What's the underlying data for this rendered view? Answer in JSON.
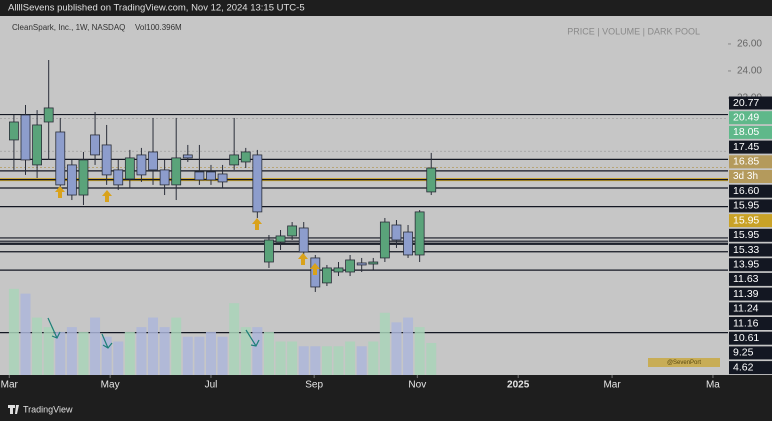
{
  "chart_data": {
    "type": "candlestick",
    "header": "AllllSevens published on TradingView.com, Nov 12, 2024 13:15 UTC-5",
    "legend": "CleanSpark, Inc., 1W, NASDAQ",
    "volume_legend": "Vol100.396M",
    "panel_title": "PRICE | VOLUME | DARK POOL",
    "watermark": "@SevenPort",
    "footer": "TradingView",
    "colors": {
      "up": "#5aa37a",
      "down": "#8d9dcc",
      "up_volume": "#a9d4b9",
      "down_volume": "#adb6d9"
    },
    "candles": {
      "open": [
        18.89,
        20.74,
        17.04,
        20.22,
        19.48,
        17.04,
        14.81,
        19.26,
        18.52,
        16.67,
        16.0,
        17.78,
        18.0,
        16.67,
        15.56,
        17.78,
        16.52,
        16.52,
        16.37,
        17.04,
        17.26,
        17.78,
        9.85,
        11.33,
        11.78,
        12.37,
        10.15,
        8.3,
        9.11,
        9.11,
        9.78,
        9.7,
        10.15,
        12.59,
        12.07,
        10.37,
        15.04
      ],
      "high": [
        20.74,
        21.48,
        21.1,
        24.81,
        20.52,
        17.41,
        18.0,
        20.96,
        20.0,
        17.41,
        18.15,
        18.3,
        20.52,
        17.41,
        20.52,
        18.52,
        18.52,
        17.04,
        17.04,
        20.52,
        18.3,
        18.15,
        11.85,
        12.22,
        12.81,
        12.81,
        10.37,
        9.63,
        9.85,
        10.37,
        10.15,
        10.15,
        13.11,
        12.96,
        12.59,
        13.7,
        17.93
      ],
      "low": [
        16.67,
        16.3,
        16.07,
        17.41,
        14.81,
        14.44,
        14.07,
        17.04,
        15.56,
        15.19,
        15.33,
        15.78,
        15.56,
        14.81,
        14.44,
        17.26,
        15.56,
        15.56,
        15.33,
        16.67,
        16.81,
        13.11,
        9.41,
        10.74,
        11.48,
        10.15,
        7.63,
        8.07,
        8.81,
        8.81,
        9.11,
        9.26,
        9.85,
        10.89,
        10.15,
        9.85,
        14.81
      ],
      "close": [
        20.22,
        17.41,
        20.0,
        21.26,
        15.56,
        14.81,
        17.41,
        17.78,
        16.3,
        15.56,
        17.56,
        16.3,
        16.67,
        15.56,
        17.56,
        17.56,
        15.93,
        15.93,
        15.78,
        17.78,
        18.0,
        13.56,
        11.48,
        11.78,
        12.52,
        10.59,
        8.0,
        9.41,
        9.41,
        10.0,
        9.63,
        9.85,
        12.81,
        11.48,
        10.37,
        13.56,
        16.81
      ]
    },
    "volume": [
      270,
      255,
      180,
      150,
      135,
      150,
      135,
      180,
      120,
      105,
      135,
      150,
      180,
      150,
      180,
      120,
      120,
      135,
      120,
      225,
      150,
      150,
      135,
      105,
      105,
      90,
      90,
      90,
      90,
      105,
      90,
      105,
      195,
      165,
      180,
      150,
      100.396
    ],
    "volume_ylim": [
      0,
      1125
    ],
    "xlim": [
      -1.2,
      61.6
    ],
    "xticks": [
      {
        "value": -0.4,
        "label": "Mar"
      },
      {
        "value": 8.3,
        "label": "May"
      },
      {
        "value": 17.0,
        "label": "Jul"
      },
      {
        "value": 25.9,
        "label": "Sep"
      },
      {
        "value": 34.8,
        "label": "Nov"
      },
      {
        "value": 43.5,
        "label": "2025"
      },
      {
        "value": 51.6,
        "label": "Mar"
      },
      {
        "value": 60.3,
        "label": "Ma"
      }
    ],
    "ylim": [
      1.48,
      28.07
    ],
    "yticks": [
      {
        "value": 26,
        "label": "26.00"
      },
      {
        "value": 24,
        "label": "24.00"
      },
      {
        "value": 22,
        "label": "22.00"
      }
    ],
    "levels": [
      {
        "value": 20.77,
        "color": "#131722"
      },
      {
        "value": 20.49,
        "color": "#5fb88a"
      },
      {
        "value": 18.05,
        "color": "#5fb88a"
      },
      {
        "value": 17.45,
        "color": "#131722"
      },
      {
        "value": 16.85,
        "color": "#b49a5c",
        "countdown": "3d 3h"
      },
      {
        "value": 16.6,
        "label": "16.60",
        "color": "#131722"
      },
      {
        "value": 15.95,
        "color": "#131722"
      },
      {
        "value": 15.95,
        "color": "#c9a227"
      },
      {
        "value": 15.95,
        "color": "#131722"
      },
      {
        "value": 15.33,
        "color": "#131722"
      },
      {
        "value": 13.95,
        "color": "#131722"
      },
      {
        "value": 11.63,
        "color": "#131722"
      },
      {
        "value": 11.39,
        "color": "#131722"
      },
      {
        "value": 11.24,
        "color": "#131722"
      },
      {
        "value": 11.16,
        "color": "#131722"
      },
      {
        "value": 10.61,
        "color": "#131722"
      },
      {
        "value": 9.25,
        "color": "#131722"
      },
      {
        "value": 4.62,
        "color": "#131722"
      }
    ]
  }
}
